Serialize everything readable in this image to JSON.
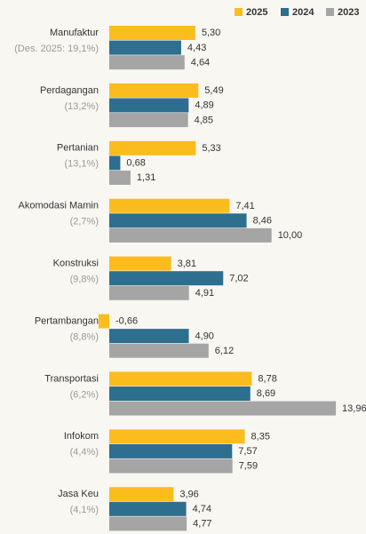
{
  "chart_data": {
    "type": "bar",
    "orientation": "horizontal",
    "categories": [
      "Manufaktur",
      "Perdagangan",
      "Pertanian",
      "Akomodasi Mamin",
      "Konstruksi",
      "Pertambangan",
      "Transportasi",
      "Infokom",
      "Jasa Keu"
    ],
    "category_notes": [
      "(Des. 2025: 19,1%)",
      "(13,2%)",
      "(13,1%)",
      "(2,7%)",
      "(9,8%)",
      "(8,8%)",
      "(6,2%)",
      "(4,4%)",
      "(4,1%)"
    ],
    "series": [
      {
        "name": "2025",
        "color": "#fbbc1e",
        "values": [
          5.3,
          5.49,
          5.33,
          7.41,
          3.81,
          -0.66,
          8.78,
          8.35,
          3.96
        ],
        "value_labels": [
          "5,30",
          "5,49",
          "5,33",
          "7,41",
          "3,81",
          "-0,66",
          "8,78",
          "8,35",
          "3,96"
        ]
      },
      {
        "name": "2024",
        "color": "#2e6e8e",
        "values": [
          4.43,
          4.89,
          0.68,
          8.46,
          7.02,
          4.9,
          8.69,
          7.57,
          4.74
        ],
        "value_labels": [
          "4,43",
          "4,89",
          "0,68",
          "8,46",
          "7,02",
          "4,90",
          "8,69",
          "7,57",
          "4,74"
        ]
      },
      {
        "name": "2023",
        "color": "#a5a5a5",
        "values": [
          4.64,
          4.85,
          1.31,
          10.0,
          4.91,
          6.12,
          13.96,
          7.59,
          4.77
        ],
        "value_labels": [
          "4,64",
          "4,85",
          "1,31",
          "10,00",
          "4,91",
          "6,12",
          "13,96",
          "7,59",
          "4,77"
        ]
      }
    ],
    "legend": "top-right"
  }
}
